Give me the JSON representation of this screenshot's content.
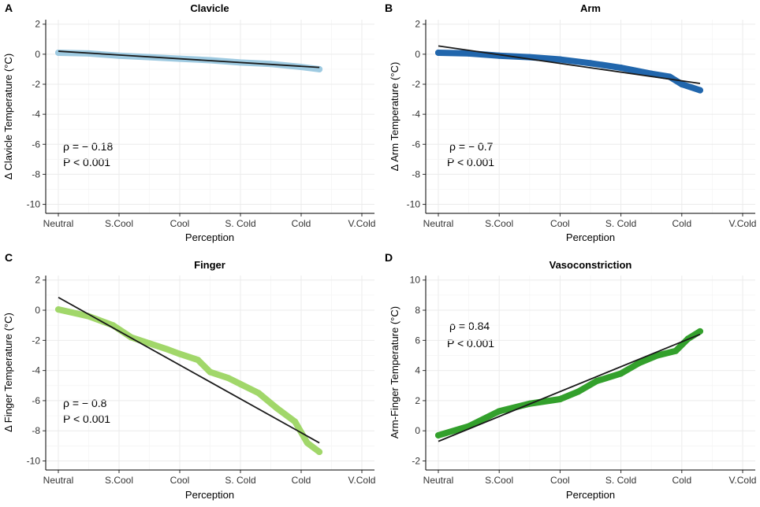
{
  "chart_data": [
    {
      "panel": "A",
      "type": "scatter",
      "title": "Clavicle",
      "xlabel": "Perception",
      "ylabel": "Δ Clavicle Temperature (°C)",
      "categories": [
        "Neutral",
        "S.Cool",
        "Cool",
        "S. Cold",
        "Cold",
        "V.Cold"
      ],
      "xlim": [
        0,
        5
      ],
      "ylim": [
        -10.6,
        2.3
      ],
      "yticks": [
        "2",
        "0",
        "-2",
        "-4",
        "-6",
        "-8",
        "-10"
      ],
      "point_color": "#9ecae1",
      "series": [
        {
          "name": "data",
          "x": [
            0,
            0.5,
            1,
            1.5,
            2,
            2.5,
            3,
            3.5,
            4,
            4.3
          ],
          "y": [
            0.1,
            0.05,
            -0.1,
            -0.2,
            -0.3,
            -0.4,
            -0.55,
            -0.65,
            -0.85,
            -1.0
          ]
        }
      ],
      "fit": {
        "x": [
          0,
          4.3
        ],
        "y": [
          0.2,
          -0.88
        ]
      },
      "annotation": {
        "rho": "ρ = − 0.18",
        "p": "P < 0.001"
      }
    },
    {
      "panel": "B",
      "type": "scatter",
      "title": "Arm",
      "xlabel": "Perception",
      "ylabel": "Δ Arm Temperature (°C)",
      "categories": [
        "Neutral",
        "S.Cool",
        "Cool",
        "S. Cold",
        "Cold",
        "V.Cold"
      ],
      "xlim": [
        0,
        5
      ],
      "ylim": [
        -10.6,
        2.3
      ],
      "yticks": [
        "2",
        "0",
        "-2",
        "-4",
        "-6",
        "-8",
        "-10"
      ],
      "point_color": "#2166ac",
      "series": [
        {
          "name": "data",
          "x": [
            0,
            0.5,
            1,
            1.5,
            2,
            2.5,
            3,
            3.5,
            3.8,
            4,
            4.3
          ],
          "y": [
            0.1,
            0.05,
            -0.1,
            -0.2,
            -0.35,
            -0.6,
            -0.9,
            -1.3,
            -1.5,
            -2.0,
            -2.4
          ]
        }
      ],
      "fit": {
        "x": [
          0,
          4.3
        ],
        "y": [
          0.55,
          -1.95
        ]
      },
      "annotation": {
        "rho": "ρ = − 0.7",
        "p": "P < 0.001"
      }
    },
    {
      "panel": "C",
      "type": "scatter",
      "title": "Finger",
      "xlabel": "Perception",
      "ylabel": "Δ Finger Temperature (°C)",
      "categories": [
        "Neutral",
        "S.Cool",
        "Cool",
        "S. Cold",
        "Cold",
        "V.Cold"
      ],
      "xlim": [
        0,
        5
      ],
      "ylim": [
        -10.6,
        2.3
      ],
      "yticks": [
        "2",
        "0",
        "-2",
        "-4",
        "-6",
        "-8",
        "-10"
      ],
      "point_color": "#a1d76a",
      "series": [
        {
          "name": "data",
          "x": [
            0,
            0.5,
            0.9,
            1.2,
            1.5,
            1.8,
            2,
            2.3,
            2.5,
            2.8,
            3,
            3.3,
            3.6,
            3.9,
            4.1,
            4.3
          ],
          "y": [
            0.05,
            -0.4,
            -1.0,
            -1.8,
            -2.2,
            -2.6,
            -2.9,
            -3.3,
            -4.1,
            -4.5,
            -4.9,
            -5.5,
            -6.5,
            -7.4,
            -8.8,
            -9.4
          ]
        }
      ],
      "fit": {
        "x": [
          0,
          4.3
        ],
        "y": [
          0.85,
          -8.8
        ]
      },
      "annotation": {
        "rho": "ρ = − 0.8",
        "p": "P < 0.001"
      }
    },
    {
      "panel": "D",
      "type": "scatter",
      "title": "Vasoconstriction",
      "xlabel": "Perception",
      "ylabel": "Arm-Finger Temperature (°C)",
      "categories": [
        "Neutral",
        "S.Cool",
        "Cool",
        "S. Cold",
        "Cold",
        "V.Cold"
      ],
      "xlim": [
        0,
        5
      ],
      "ylim": [
        -2.6,
        10.3
      ],
      "yticks": [
        "10",
        "8",
        "6",
        "4",
        "2",
        "0",
        "-2"
      ],
      "point_color": "#33a02c",
      "series": [
        {
          "name": "data",
          "x": [
            0,
            0.5,
            1,
            1.5,
            2,
            2.3,
            2.6,
            3,
            3.3,
            3.6,
            3.9,
            4.1,
            4.3
          ],
          "y": [
            -0.3,
            0.3,
            1.3,
            1.8,
            2.1,
            2.6,
            3.3,
            3.8,
            4.5,
            5.0,
            5.3,
            6.1,
            6.6
          ]
        }
      ],
      "fit": {
        "x": [
          0,
          4.3
        ],
        "y": [
          -0.7,
          6.4
        ]
      },
      "annotation": {
        "rho": "ρ = 0.84",
        "p": "P < 0.001"
      }
    }
  ]
}
